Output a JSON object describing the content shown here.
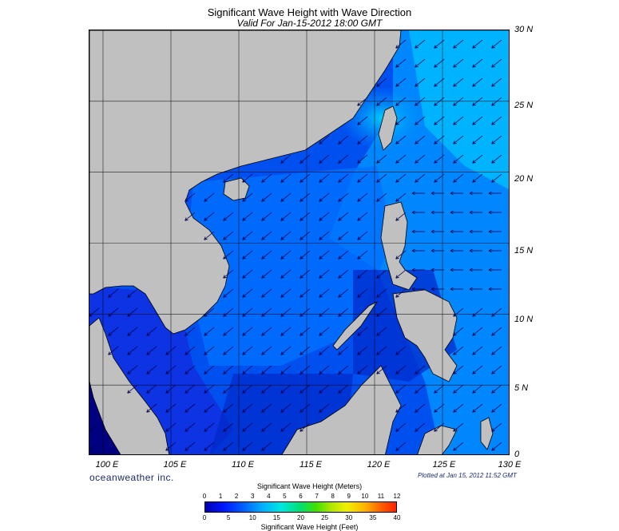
{
  "title": "Significant Wave Height with Wave Direction",
  "subtitle": "Valid For Jan-15-2012 18:00 GMT",
  "lat_labels": [
    "30 N",
    "25 N",
    "20 N",
    "15 N",
    "10 N",
    "5 N",
    "0"
  ],
  "lon_labels": [
    "100 E",
    "105 E",
    "110 E",
    "115 E",
    "120 E",
    "125 E",
    "130 E"
  ],
  "brand": "oceanweather inc.",
  "plotted": "Plotted at Jan 15, 2012 11:52 GMT",
  "legend": {
    "title_meters": "Significant Wave Height (Meters)",
    "title_feet": "Significant Wave Height (Feet)",
    "meters_ticks": [
      "0",
      "1",
      "2",
      "3",
      "4",
      "5",
      "6",
      "7",
      "8",
      "9",
      "10",
      "11",
      "12"
    ],
    "feet_ticks": [
      "0",
      "5",
      "10",
      "15",
      "20",
      "25",
      "30",
      "35",
      "40"
    ]
  },
  "colors": {
    "land": "#c0c0c0",
    "deep_blue": "#0000b4",
    "mid_blue": "#0040ff",
    "light_blue": "#0090ff",
    "cyan": "#00c8ff",
    "arrow": "#000060"
  },
  "map": {
    "lon_range": [
      99,
      130
    ],
    "lat_range": [
      0,
      30
    ],
    "arrow_direction": "toward southwest"
  }
}
